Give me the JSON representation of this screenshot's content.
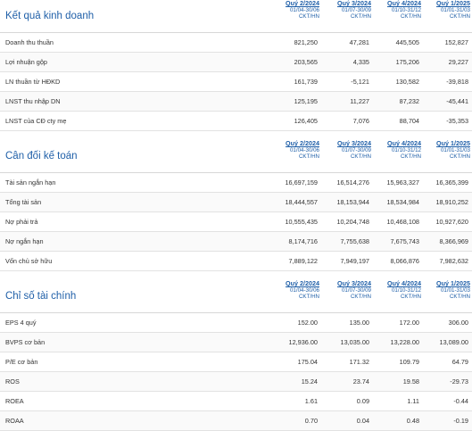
{
  "columns": [
    {
      "quarter": "Quý 2/2024",
      "range": "01/04-30/06",
      "unit": "CKT/HN"
    },
    {
      "quarter": "Quý 3/2024",
      "range": "01/07-30/09",
      "unit": "CKT/HN"
    },
    {
      "quarter": "Quý 4/2024",
      "range": "01/10-31/12",
      "unit": "CKT/HN"
    },
    {
      "quarter": "Quý 1/2025",
      "range": "01/01-31/03",
      "unit": "CKT/HN"
    }
  ],
  "sections": [
    {
      "title": "Kết quả kinh doanh",
      "rows": [
        {
          "label": "Doanh thu thuần",
          "values": [
            "821,250",
            "47,281",
            "445,505",
            "152,827"
          ]
        },
        {
          "label": "Lợi nhuận gộp",
          "values": [
            "203,565",
            "4,335",
            "175,206",
            "29,227"
          ]
        },
        {
          "label": "LN thuần từ HĐKD",
          "values": [
            "161,739",
            "-5,121",
            "130,582",
            "-39,818"
          ]
        },
        {
          "label": "LNST thu nhập DN",
          "values": [
            "125,195",
            "11,227",
            "87,232",
            "-45,441"
          ]
        },
        {
          "label": "LNST của CĐ cty mẹ",
          "values": [
            "126,405",
            "7,076",
            "88,704",
            "-35,353"
          ]
        }
      ]
    },
    {
      "title": "Cân đối kế toán",
      "rows": [
        {
          "label": "Tài sản ngắn hạn",
          "values": [
            "16,697,159",
            "16,514,276",
            "15,963,327",
            "16,365,399"
          ]
        },
        {
          "label": "Tổng tài sản",
          "values": [
            "18,444,557",
            "18,153,944",
            "18,534,984",
            "18,910,252"
          ]
        },
        {
          "label": "Nợ phải trả",
          "values": [
            "10,555,435",
            "10,204,748",
            "10,468,108",
            "10,927,620"
          ]
        },
        {
          "label": "Nợ ngắn hạn",
          "values": [
            "8,174,716",
            "7,755,638",
            "7,675,743",
            "8,366,969"
          ]
        },
        {
          "label": "Vốn chủ sở hữu",
          "values": [
            "7,889,122",
            "7,949,197",
            "8,066,876",
            "7,982,632"
          ]
        }
      ]
    },
    {
      "title": "Chỉ số tài chính",
      "rows": [
        {
          "label": "EPS 4 quý",
          "values": [
            "152.00",
            "135.00",
            "172.00",
            "306.00"
          ]
        },
        {
          "label": "BVPS cơ bản",
          "values": [
            "12,936.00",
            "13,035.00",
            "13,228.00",
            "13,089.00"
          ]
        },
        {
          "label": "P/E cơ bản",
          "values": [
            "175.04",
            "171.32",
            "109.79",
            "64.79"
          ]
        },
        {
          "label": "ROS",
          "values": [
            "15.24",
            "23.74",
            "19.58",
            "-29.73"
          ]
        },
        {
          "label": "ROEA",
          "values": [
            "1.61",
            "0.09",
            "1.11",
            "-0.44"
          ]
        },
        {
          "label": "ROAA",
          "values": [
            "0.70",
            "0.04",
            "0.48",
            "-0.19"
          ]
        }
      ]
    }
  ]
}
